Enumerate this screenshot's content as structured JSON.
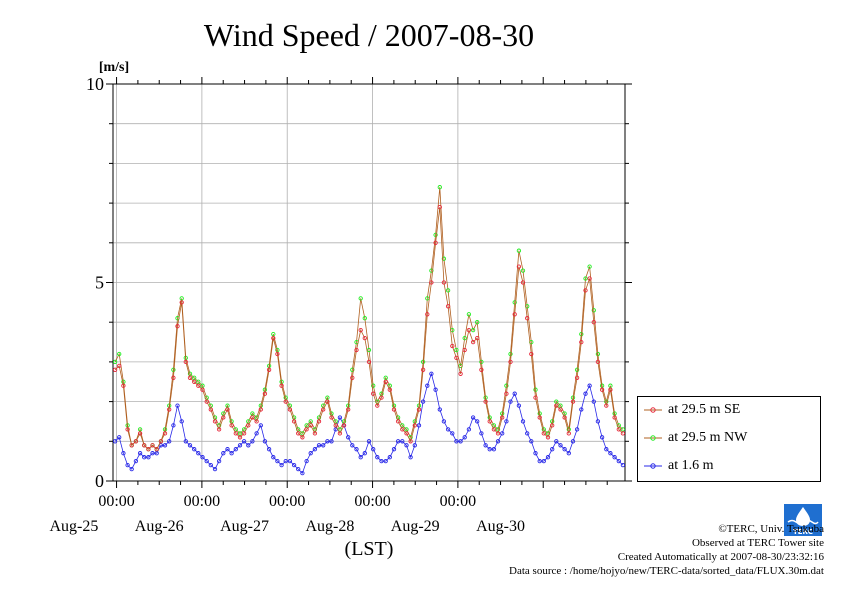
{
  "chart_data": {
    "type": "line",
    "title": "Wind Speed / 2007-08-30",
    "ylabel": "[m/s]",
    "xlabel": "(LST)",
    "ylim": [
      0,
      10
    ],
    "yticks": [
      "0",
      "5",
      "10"
    ],
    "xtick_labels": [
      "00:00",
      "00:00",
      "00:00",
      "00:00",
      "00:00"
    ],
    "day_labels": [
      "Aug-25",
      "Aug-26",
      "Aug-27",
      "Aug-28",
      "Aug-29",
      "Aug-30"
    ],
    "grid": true,
    "legend_position": "right",
    "hours_per_point": 2,
    "series": [
      {
        "name": "at 29.5 m SE",
        "color": "#e8283c",
        "values": [
          2.8,
          2.9,
          2.4,
          1.3,
          0.9,
          1.0,
          1.2,
          0.9,
          0.8,
          0.9,
          0.8,
          1.0,
          1.2,
          1.8,
          2.6,
          3.9,
          4.5,
          3.0,
          2.6,
          2.5,
          2.4,
          2.3,
          2.0,
          1.8,
          1.5,
          1.3,
          1.6,
          1.8,
          1.4,
          1.2,
          1.1,
          1.2,
          1.4,
          1.6,
          1.5,
          1.8,
          2.2,
          2.8,
          3.6,
          3.2,
          2.4,
          2.0,
          1.8,
          1.5,
          1.2,
          1.1,
          1.3,
          1.4,
          1.2,
          1.5,
          1.8,
          2.0,
          1.6,
          1.4,
          1.2,
          1.4,
          1.8,
          2.6,
          3.3,
          3.8,
          3.6,
          3.0,
          2.2,
          1.9,
          2.1,
          2.5,
          2.3,
          1.8,
          1.5,
          1.3,
          1.2,
          1.0,
          1.4,
          1.8,
          2.8,
          4.2,
          5.0,
          6.0,
          6.9,
          5.0,
          4.4,
          3.4,
          3.1,
          2.7,
          3.3,
          3.8,
          3.5,
          3.6,
          2.8,
          2.0,
          1.5,
          1.3,
          1.2,
          1.6,
          2.2,
          3.0,
          4.2,
          5.4,
          5.0,
          4.1,
          3.2,
          2.1,
          1.6,
          1.2,
          1.1,
          1.4,
          1.9,
          1.8,
          1.6,
          1.2,
          2.0,
          2.6,
          3.5,
          4.8,
          5.1,
          4.0,
          3.0,
          2.3,
          1.9,
          2.3,
          1.6,
          1.3,
          1.2
        ]
      },
      {
        "name": "at 29.5 m NW",
        "color": "#22ee22",
        "values": [
          3.0,
          3.2,
          2.5,
          1.4,
          0.9,
          1.0,
          1.3,
          0.9,
          0.8,
          0.9,
          0.8,
          1.0,
          1.3,
          1.9,
          2.8,
          4.1,
          4.6,
          3.1,
          2.7,
          2.6,
          2.5,
          2.4,
          2.1,
          1.9,
          1.6,
          1.4,
          1.7,
          1.9,
          1.5,
          1.3,
          1.2,
          1.3,
          1.5,
          1.7,
          1.6,
          1.9,
          2.3,
          2.9,
          3.7,
          3.3,
          2.5,
          2.1,
          1.9,
          1.6,
          1.3,
          1.2,
          1.4,
          1.5,
          1.3,
          1.6,
          1.9,
          2.1,
          1.7,
          1.5,
          1.3,
          1.5,
          1.9,
          2.8,
          3.5,
          4.6,
          4.1,
          3.3,
          2.4,
          2.0,
          2.2,
          2.6,
          2.4,
          1.9,
          1.6,
          1.4,
          1.3,
          1.1,
          1.5,
          1.9,
          3.0,
          4.6,
          5.3,
          6.2,
          7.4,
          5.6,
          4.8,
          3.8,
          3.3,
          2.9,
          3.6,
          4.2,
          3.8,
          4.0,
          3.0,
          2.1,
          1.6,
          1.4,
          1.3,
          1.7,
          2.4,
          3.2,
          4.5,
          5.8,
          5.3,
          4.4,
          3.5,
          2.3,
          1.7,
          1.3,
          1.2,
          1.5,
          2.0,
          1.9,
          1.7,
          1.3,
          2.1,
          2.8,
          3.7,
          5.1,
          5.4,
          4.3,
          3.2,
          2.4,
          2.0,
          2.4,
          1.7,
          1.4,
          1.3
        ]
      },
      {
        "name": "at 1.6 m",
        "color": "#2828e8",
        "values": [
          1.0,
          1.1,
          0.7,
          0.4,
          0.3,
          0.5,
          0.7,
          0.6,
          0.6,
          0.7,
          0.7,
          0.9,
          0.9,
          1.0,
          1.4,
          1.9,
          1.5,
          1.0,
          0.9,
          0.8,
          0.7,
          0.6,
          0.5,
          0.4,
          0.3,
          0.5,
          0.7,
          0.8,
          0.7,
          0.8,
          0.9,
          1.0,
          0.9,
          1.0,
          1.2,
          1.4,
          1.0,
          0.8,
          0.6,
          0.5,
          0.4,
          0.5,
          0.5,
          0.4,
          0.3,
          0.2,
          0.5,
          0.7,
          0.8,
          0.9,
          0.9,
          1.0,
          1.0,
          1.3,
          1.6,
          1.4,
          1.1,
          0.9,
          0.8,
          0.6,
          0.7,
          1.0,
          0.8,
          0.6,
          0.5,
          0.5,
          0.6,
          0.8,
          1.0,
          1.0,
          0.9,
          0.6,
          0.9,
          1.4,
          2.0,
          2.4,
          2.7,
          2.3,
          1.8,
          1.5,
          1.3,
          1.2,
          1.0,
          1.0,
          1.1,
          1.3,
          1.6,
          1.5,
          1.2,
          0.9,
          0.8,
          0.8,
          1.0,
          1.2,
          1.5,
          2.0,
          2.2,
          1.9,
          1.5,
          1.2,
          1.0,
          0.7,
          0.5,
          0.5,
          0.6,
          0.8,
          1.0,
          0.9,
          0.8,
          0.7,
          1.0,
          1.3,
          1.8,
          2.2,
          2.4,
          2.0,
          1.5,
          1.1,
          0.8,
          0.7,
          0.6,
          0.5,
          0.4
        ]
      }
    ]
  },
  "credits": {
    "copyright": "©TERC, Univ. Tsukuba",
    "observed": "Observed at TERC Tower site",
    "created": "Created Automatically at 2007-08-30/23:32:16",
    "source": "Data source : /home/hojyo/new/TERC-data/sorted_data/FLUX.30m.dat"
  },
  "logo_text": "TERC"
}
